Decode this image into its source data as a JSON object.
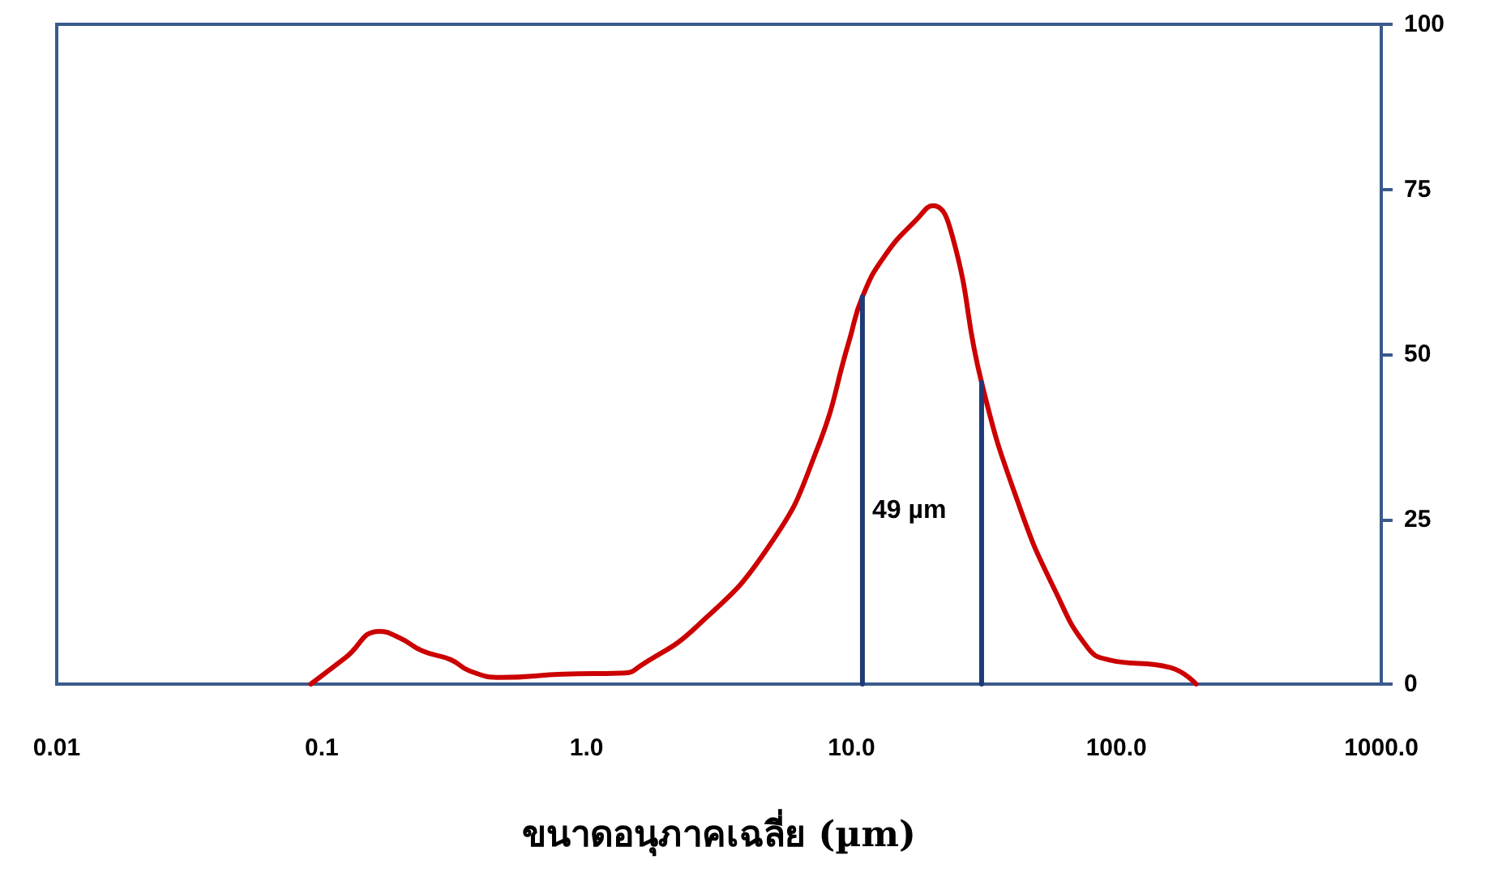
{
  "chart_data": {
    "type": "line",
    "xlabel": "ขนาดอนุภาคเฉลี่ย (µm)",
    "log": "x",
    "xlim": [
      0.01,
      1000
    ],
    "xticks": [
      {
        "value": 0.01,
        "label": "0.01"
      },
      {
        "value": 0.1,
        "label": "0.1"
      },
      {
        "value": 1,
        "label": "1.0"
      },
      {
        "value": 10,
        "label": "10.0"
      },
      {
        "value": 100,
        "label": "100.0"
      },
      {
        "value": 1000,
        "label": "1000.0"
      }
    ],
    "ylim": [
      0,
      100
    ],
    "yticks": [
      0,
      25,
      50,
      75,
      100
    ],
    "grid": false,
    "marker": "none",
    "line_style": "solid",
    "series": [
      {
        "color": "#cc0000",
        "x": [
          0.091,
          0.123,
          0.165,
          0.197,
          0.241,
          0.307,
          0.362,
          0.475,
          0.815,
          1.4,
          1.6,
          2.6,
          4.9,
          7.4,
          9.8,
          11,
          13.4,
          17.7,
          20.3,
          24,
          31,
          43,
          59,
          78,
          93,
          160,
          200
        ],
        "values": [
          0,
          4,
          8,
          7,
          5,
          3.7,
          2,
          1,
          1.5,
          1.7,
          2.8,
          8.7,
          21,
          35.5,
          52,
          58.7,
          65,
          70.5,
          72.5,
          68,
          45.7,
          27,
          14,
          5.5,
          3.7,
          2.5,
          0
        ]
      },
      {
        "color": "#1f3a78",
        "x": [
          11,
          11
        ],
        "values": [
          0,
          58.7
        ]
      },
      {
        "color": "#1f3a78",
        "x": [
          31,
          31
        ],
        "values": [
          0,
          45.7
        ]
      }
    ],
    "annotations": [
      "49 µm"
    ]
  }
}
